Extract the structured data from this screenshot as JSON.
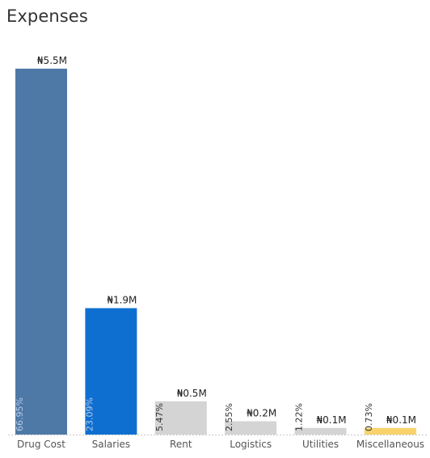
{
  "chart_data": {
    "type": "bar",
    "title": "Expenses",
    "categories": [
      "Drug Cost",
      "Salaries",
      "Rent",
      "Logistics",
      "Utilities",
      "Miscellaneous"
    ],
    "values": [
      5.5,
      1.9,
      0.5,
      0.2,
      0.1,
      0.1
    ],
    "value_labels": [
      "₦5.5M",
      "₦1.9M",
      "₦0.5M",
      "₦0.2M",
      "₦0.1M",
      "₦0.1M"
    ],
    "percent_labels": [
      "66.95%",
      "23.09%",
      "5.47%",
      "2.55%",
      "1.22%",
      "0.73%"
    ],
    "colors": [
      "#4e79a7",
      "#0f6fd1",
      "#d4d4d4",
      "#d4d4d4",
      "#d4d4d4",
      "#f9d36b"
    ],
    "xlabel": "",
    "ylabel": "",
    "ylim": [
      0,
      5.5
    ],
    "grid": false,
    "legend": "none"
  }
}
